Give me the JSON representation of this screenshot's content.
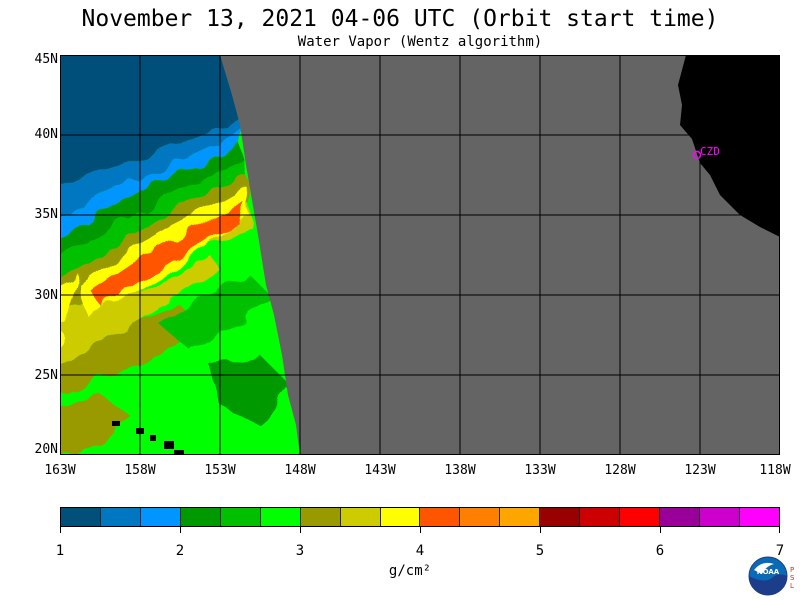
{
  "header": {
    "title": "November 13, 2021  04-06 UTC  (Orbit start time)",
    "subtitle": "Water Vapor (Wentz algorithm)"
  },
  "map": {
    "lat_labels": [
      "45N",
      "40N",
      "35N",
      "30N",
      "25N",
      "20N"
    ],
    "lon_labels": [
      "163W",
      "158W",
      "153W",
      "148W",
      "143W",
      "138W",
      "133W",
      "128W",
      "123W",
      "118W"
    ],
    "station_label": "CZD",
    "colors": {
      "no_data": "#646464",
      "land": "#000000",
      "grid": "#000000",
      "station": "#ff00ff"
    }
  },
  "colorbar": {
    "colors": [
      "#00507a",
      "#0077c0",
      "#0095ff",
      "#009900",
      "#00c000",
      "#00ff00",
      "#999900",
      "#cccc00",
      "#ffff00",
      "#ff5500",
      "#ff7f00",
      "#ffa500",
      "#990000",
      "#cc0000",
      "#ff0000",
      "#990099",
      "#cc00cc",
      "#ff00ff"
    ],
    "tick_labels": [
      "1",
      "2",
      "3",
      "4",
      "5",
      "6",
      "7"
    ],
    "units": "g/cm²"
  },
  "logo": {
    "name": "NOAA",
    "side_text": "PSL"
  }
}
